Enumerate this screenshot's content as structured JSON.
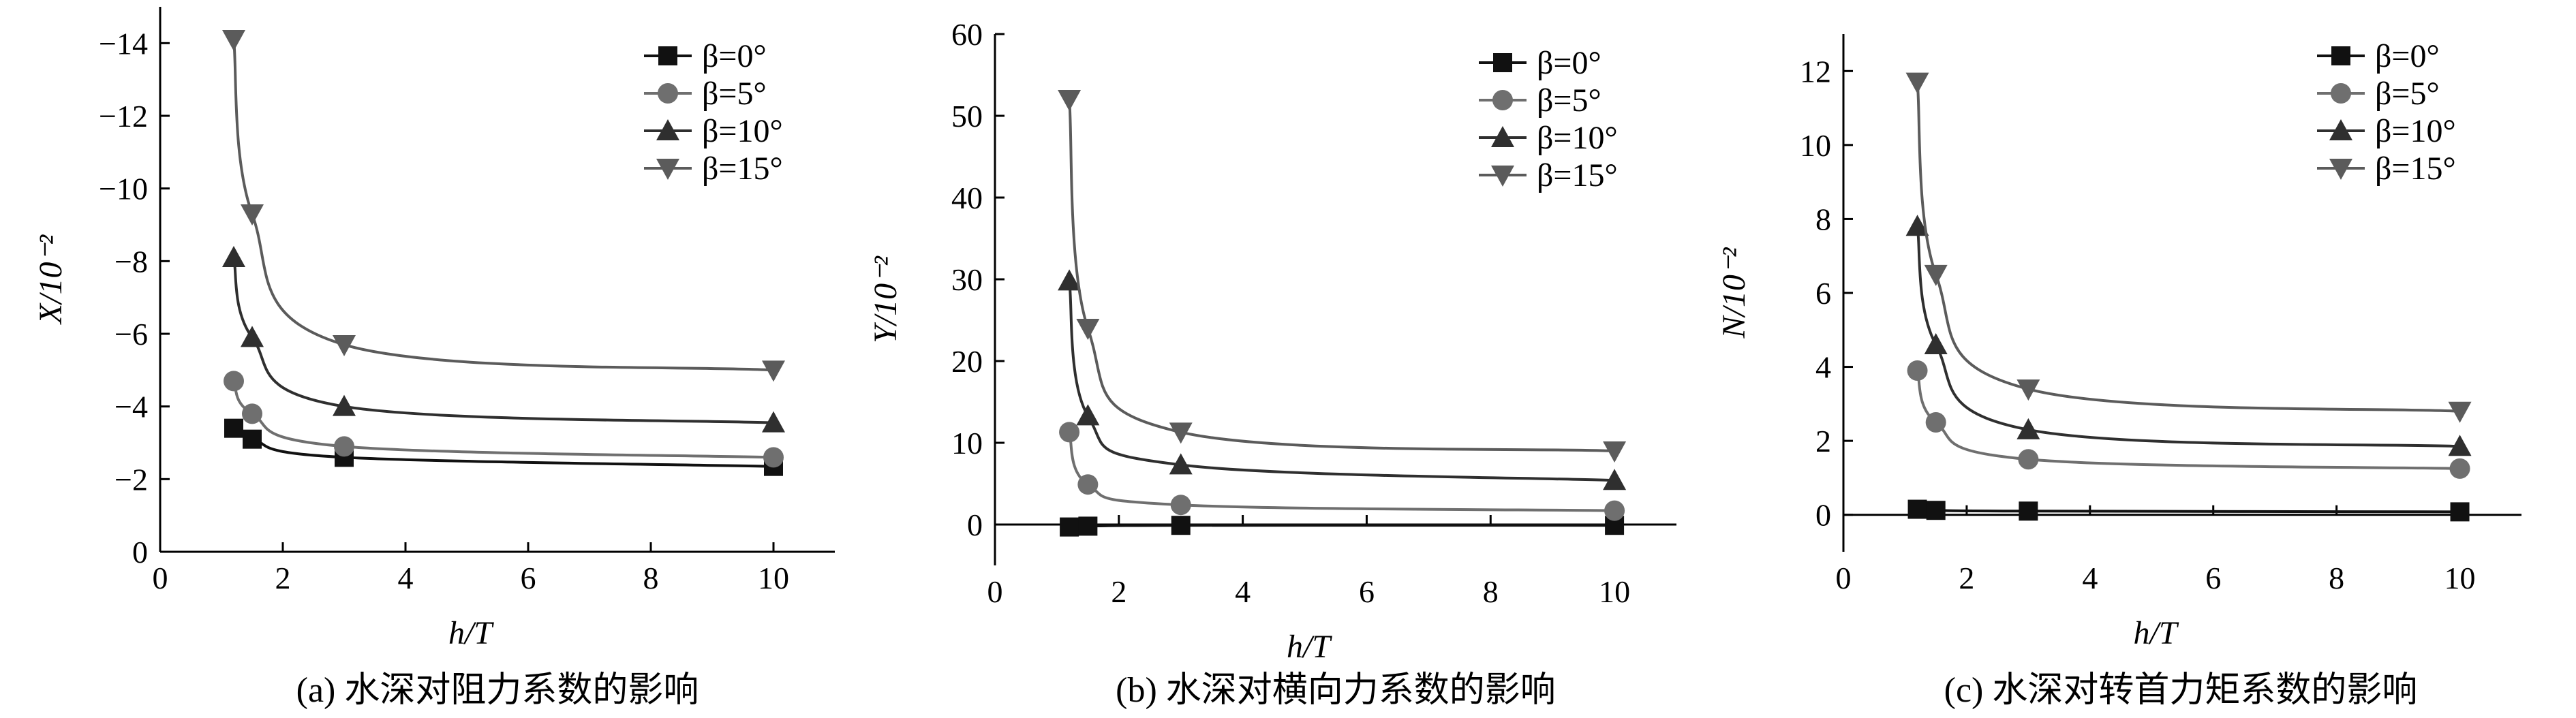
{
  "colors": {
    "beta0": "#111111",
    "beta5": "#6f6f6f",
    "beta10": "#2f2f2f",
    "beta15": "#5b5b5b"
  },
  "chart_data": [
    {
      "type": "line",
      "caption": "(a) 水深对阻力系数的影响",
      "xlabel": "h/T",
      "ylabel": "X/10⁻²",
      "xlim": [
        0,
        11
      ],
      "ylim": [
        0,
        -15
      ],
      "xticks": [
        0,
        2,
        4,
        6,
        8,
        10
      ],
      "xtick_labels": [
        "0",
        "2",
        "4",
        "6",
        "8",
        "10"
      ],
      "yticks": [
        0,
        -2,
        -4,
        -6,
        -8,
        -10,
        -12,
        -14
      ],
      "ytick_labels": [
        "0",
        "−2",
        "−4",
        "−6",
        "−8",
        "−10",
        "−12",
        "−14"
      ],
      "legend": "top-right",
      "series": [
        {
          "name": "β=0°",
          "marker": "square",
          "x": [
            1.2,
            1.5,
            3,
            10
          ],
          "y": [
            -3.4,
            -3.1,
            -2.6,
            -2.35
          ]
        },
        {
          "name": "β=5°",
          "marker": "circle",
          "x": [
            1.2,
            1.5,
            3,
            10
          ],
          "y": [
            -4.7,
            -3.8,
            -2.9,
            -2.6
          ]
        },
        {
          "name": "β=10°",
          "marker": "triangle-up",
          "x": [
            1.2,
            1.5,
            3,
            10
          ],
          "y": [
            -8.1,
            -5.9,
            -4.0,
            -3.55
          ]
        },
        {
          "name": "β=15°",
          "marker": "triangle-down",
          "x": [
            1.2,
            1.5,
            3,
            10
          ],
          "y": [
            -14.1,
            -9.3,
            -5.7,
            -5.0
          ]
        }
      ]
    },
    {
      "type": "line",
      "caption": "(b) 水深对横向力系数的影响",
      "xlabel": "h/T",
      "ylabel": "Y/10⁻²",
      "xlim": [
        0,
        11
      ],
      "ylim": [
        -5,
        60
      ],
      "xticks": [
        0,
        2,
        4,
        6,
        8,
        10
      ],
      "xtick_labels": [
        "0",
        "2",
        "4",
        "6",
        "8",
        "10"
      ],
      "yticks": [
        0,
        10,
        20,
        30,
        40,
        50,
        60
      ],
      "ytick_labels": [
        "0",
        "10",
        "20",
        "30",
        "40",
        "50",
        "60"
      ],
      "legend": "top-right",
      "series": [
        {
          "name": "β=0°",
          "marker": "square",
          "x": [
            1.2,
            1.5,
            3,
            10
          ],
          "y": [
            -0.3,
            -0.2,
            -0.1,
            -0.1
          ]
        },
        {
          "name": "β=5°",
          "marker": "circle",
          "x": [
            1.2,
            1.5,
            3,
            10
          ],
          "y": [
            11.3,
            4.9,
            2.4,
            1.7
          ]
        },
        {
          "name": "β=10°",
          "marker": "triangle-up",
          "x": [
            1.2,
            1.5,
            3,
            10
          ],
          "y": [
            29.8,
            13.3,
            7.3,
            5.4
          ]
        },
        {
          "name": "β=15°",
          "marker": "triangle-down",
          "x": [
            1.2,
            1.5,
            3,
            10
          ],
          "y": [
            52.0,
            24.0,
            11.3,
            9.0
          ]
        }
      ]
    },
    {
      "type": "line",
      "caption": "(c) 水深对转首力矩系数的影响",
      "xlabel": "h/T",
      "ylabel": "N/10⁻²",
      "xlim": [
        0,
        11
      ],
      "ylim": [
        -1,
        13
      ],
      "xticks": [
        0,
        2,
        4,
        6,
        8,
        10
      ],
      "xtick_labels": [
        "0",
        "2",
        "4",
        "6",
        "8",
        "10"
      ],
      "yticks": [
        0,
        2,
        4,
        6,
        8,
        10,
        12
      ],
      "ytick_labels": [
        "0",
        "2",
        "4",
        "6",
        "8",
        "10",
        "12"
      ],
      "legend": "top-right",
      "series": [
        {
          "name": "β=0°",
          "marker": "square",
          "x": [
            1.2,
            1.5,
            3,
            10
          ],
          "y": [
            0.15,
            0.12,
            0.1,
            0.08
          ]
        },
        {
          "name": "β=5°",
          "marker": "circle",
          "x": [
            1.2,
            1.5,
            3,
            10
          ],
          "y": [
            3.9,
            2.5,
            1.5,
            1.25
          ]
        },
        {
          "name": "β=10°",
          "marker": "triangle-up",
          "x": [
            1.2,
            1.5,
            3,
            10
          ],
          "y": [
            7.8,
            4.6,
            2.3,
            1.85
          ]
        },
        {
          "name": "β=15°",
          "marker": "triangle-down",
          "x": [
            1.2,
            1.5,
            3,
            10
          ],
          "y": [
            11.7,
            6.5,
            3.4,
            2.8
          ]
        }
      ]
    }
  ]
}
